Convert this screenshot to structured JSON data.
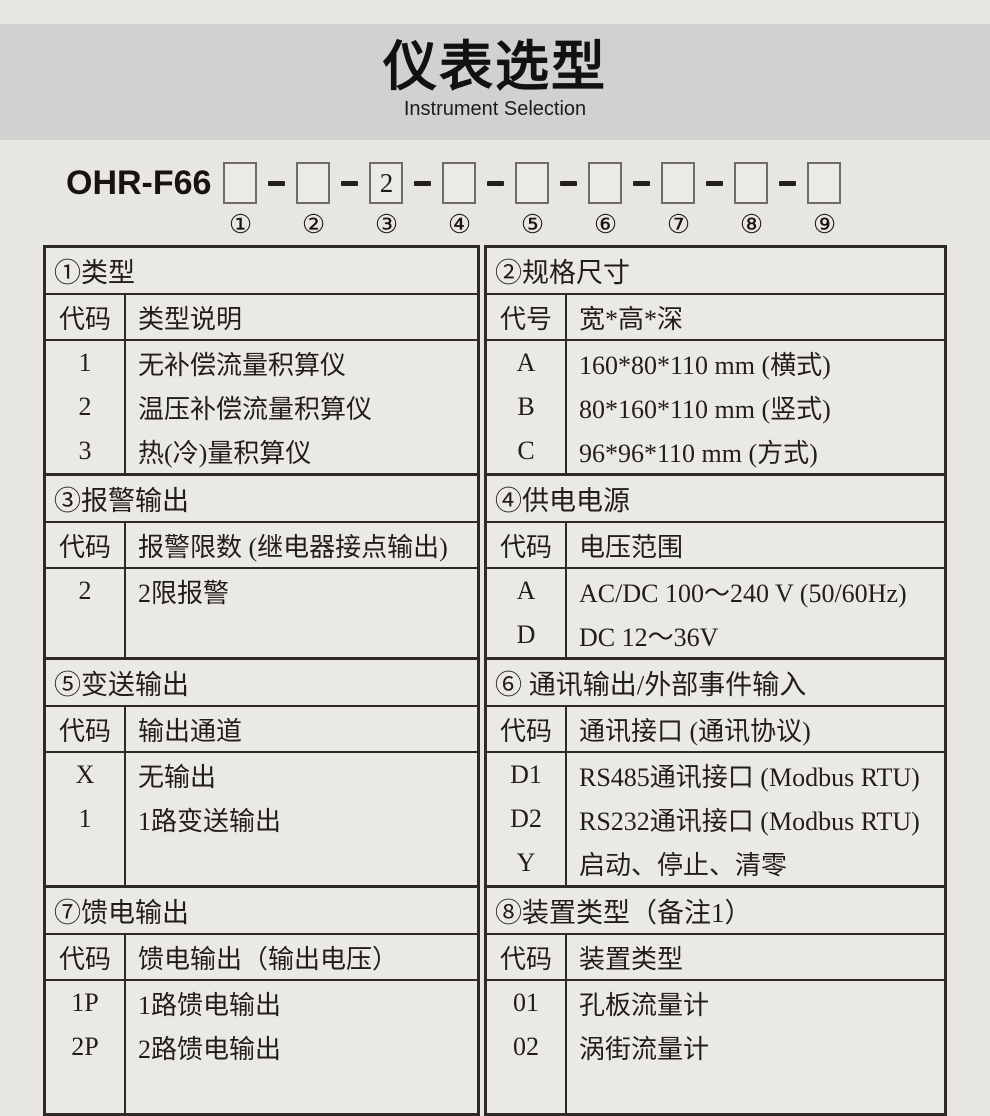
{
  "header": {
    "title": "仪表选型",
    "subtitle": "Instrument Selection"
  },
  "model": {
    "prefix": "OHR-F66",
    "boxes": [
      {
        "value": "",
        "num": "①"
      },
      {
        "value": "",
        "num": "②"
      },
      {
        "value": "2",
        "num": "③"
      },
      {
        "value": "",
        "num": "④"
      },
      {
        "value": "",
        "num": "⑤"
      },
      {
        "value": "",
        "num": "⑥"
      },
      {
        "value": "",
        "num": "⑦"
      },
      {
        "value": "",
        "num": "⑧"
      },
      {
        "value": "",
        "num": "⑨"
      }
    ]
  },
  "sections": [
    {
      "title": "①类型",
      "col_code": "代码",
      "col_desc": "类型说明",
      "rows": [
        {
          "code": "1",
          "desc": "无补偿流量积算仪"
        },
        {
          "code": "2",
          "desc": "温压补偿流量积算仪"
        },
        {
          "code": "3",
          "desc": "热(冷)量积算仪"
        }
      ]
    },
    {
      "title": "②规格尺寸",
      "col_code": "代号",
      "col_desc": "宽*高*深",
      "rows": [
        {
          "code": "A",
          "desc": "160*80*110 mm (横式)"
        },
        {
          "code": "B",
          "desc": "80*160*110 mm (竖式)"
        },
        {
          "code": "C",
          "desc": "96*96*110 mm (方式)"
        }
      ]
    },
    {
      "title": "③报警输出",
      "col_code": "代码",
      "col_desc": "报警限数 (继电器接点输出)",
      "rows": [
        {
          "code": "2",
          "desc": "2限报警"
        }
      ]
    },
    {
      "title": "④供电电源",
      "col_code": "代码",
      "col_desc": "电压范围",
      "rows": [
        {
          "code": "A",
          "desc": "AC/DC 100～240 V (50/60Hz)"
        },
        {
          "code": "D",
          "desc": "DC 12～36V"
        }
      ]
    },
    {
      "title": "⑤变送输出",
      "col_code": "代码",
      "col_desc": "输出通道",
      "rows": [
        {
          "code": "X",
          "desc": "无输出"
        },
        {
          "code": "1",
          "desc": "1路变送输出"
        }
      ]
    },
    {
      "title": "⑥ 通讯输出/外部事件输入",
      "col_code": "代码",
      "col_desc": "通讯接口 (通讯协议)",
      "rows": [
        {
          "code": "D1",
          "desc": "RS485通讯接口 (Modbus RTU)"
        },
        {
          "code": "D2",
          "desc": "RS232通讯接口 (Modbus RTU)"
        },
        {
          "code": "Y",
          "desc": "启动、停止、清零"
        }
      ]
    },
    {
      "title": "⑦馈电输出",
      "col_code": "代码",
      "col_desc": "馈电输出（输出电压）",
      "rows": [
        {
          "code": "1P",
          "desc": "1路馈电输出"
        },
        {
          "code": "2P",
          "desc": "2路馈电输出"
        }
      ]
    },
    {
      "title": "⑧装置类型（备注1）",
      "col_code": "代码",
      "col_desc": "装置类型",
      "rows": [
        {
          "code": "01",
          "desc": "孔板流量计"
        },
        {
          "code": "02",
          "desc": "涡街流量计"
        }
      ]
    }
  ]
}
